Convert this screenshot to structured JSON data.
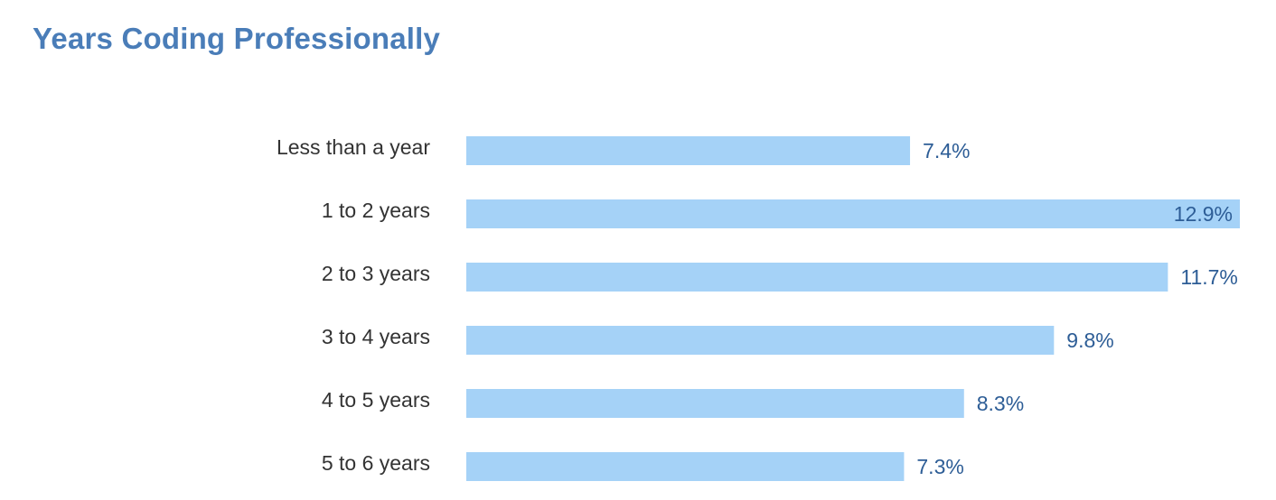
{
  "chart_data": {
    "type": "bar",
    "orientation": "horizontal",
    "title": "Years Coding Professionally",
    "categories": [
      "Less than a year",
      "1 to 2 years",
      "2 to 3 years",
      "3 to 4 years",
      "4 to 5 years",
      "5 to 6 years"
    ],
    "values": [
      7.4,
      12.9,
      11.7,
      9.8,
      8.3,
      7.3
    ],
    "value_labels": [
      "7.4%",
      "12.9%",
      "11.7%",
      "9.8%",
      "8.3%",
      "7.3%"
    ],
    "xlim": [
      0,
      12.9
    ],
    "grid": false,
    "legend": "none"
  },
  "colors": {
    "bar": "#a5d2f7",
    "value_label": "#2d5d96",
    "title": "#4a7db8",
    "category_label": "#333333"
  }
}
